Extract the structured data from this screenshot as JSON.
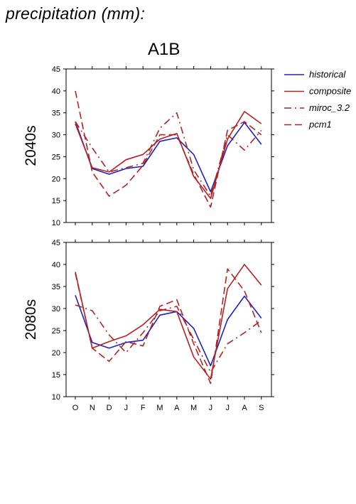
{
  "header": {
    "title": "precipitation (mm):",
    "scenario": "A1B"
  },
  "legend": {
    "items": [
      {
        "label": "historical",
        "color": "#2020c0",
        "dash": "solid"
      },
      {
        "label": "composite",
        "color": "#b22222",
        "dash": "solid"
      },
      {
        "label": "miroc_3.2",
        "color": "#b22222",
        "dash": "dashdot"
      },
      {
        "label": "pcm1",
        "color": "#b22222",
        "dash": "dash"
      }
    ]
  },
  "chart_data": [
    {
      "type": "line",
      "panel_label": "2040s",
      "categories": [
        "O",
        "N",
        "D",
        "J",
        "F",
        "M",
        "A",
        "M",
        "J",
        "J",
        "A",
        "S"
      ],
      "ylim": [
        10,
        45
      ],
      "yticks": [
        10,
        15,
        20,
        25,
        30,
        35,
        40,
        45
      ],
      "series": [
        {
          "name": "historical",
          "values": [
            33,
            22.3,
            21,
            22.3,
            22.8,
            28.5,
            29.3,
            25.5,
            17,
            27.5,
            32.8,
            27.8
          ]
        },
        {
          "name": "composite",
          "values": [
            32.5,
            22.5,
            21.5,
            24.3,
            25.5,
            29,
            30.3,
            20.5,
            15.5,
            29,
            35.3,
            32.5
          ]
        },
        {
          "name": "miroc_3.2",
          "values": [
            33,
            27,
            21.5,
            22.5,
            23.5,
            31.5,
            35,
            22,
            16,
            30,
            26.5,
            31
          ]
        },
        {
          "name": "pcm1",
          "values": [
            40,
            21.5,
            16,
            18.5,
            23,
            30,
            30,
            21,
            13.5,
            31,
            33,
            30
          ]
        }
      ]
    },
    {
      "type": "line",
      "panel_label": "2080s",
      "categories": [
        "O",
        "N",
        "D",
        "J",
        "F",
        "M",
        "A",
        "M",
        "J",
        "J",
        "A",
        "S"
      ],
      "ylim": [
        10,
        45
      ],
      "yticks": [
        10,
        15,
        20,
        25,
        30,
        35,
        40,
        45
      ],
      "series": [
        {
          "name": "historical",
          "values": [
            33,
            22.3,
            21,
            22.3,
            22.8,
            28.5,
            29.3,
            25.5,
            17,
            27.5,
            32.8,
            27.8
          ]
        },
        {
          "name": "composite",
          "values": [
            38.3,
            21,
            22.5,
            23.8,
            26.3,
            29.8,
            29.3,
            19,
            14,
            34.5,
            40,
            35.3
          ]
        },
        {
          "name": "miroc_3.2",
          "values": [
            30.8,
            29.5,
            24,
            20,
            24.5,
            29.5,
            30.5,
            23,
            15.5,
            22,
            24.5,
            27.3
          ]
        },
        {
          "name": "pcm1",
          "values": [
            38,
            21,
            18,
            22.5,
            21.5,
            30.5,
            32,
            22,
            13,
            39,
            34,
            24.5
          ]
        }
      ]
    }
  ]
}
